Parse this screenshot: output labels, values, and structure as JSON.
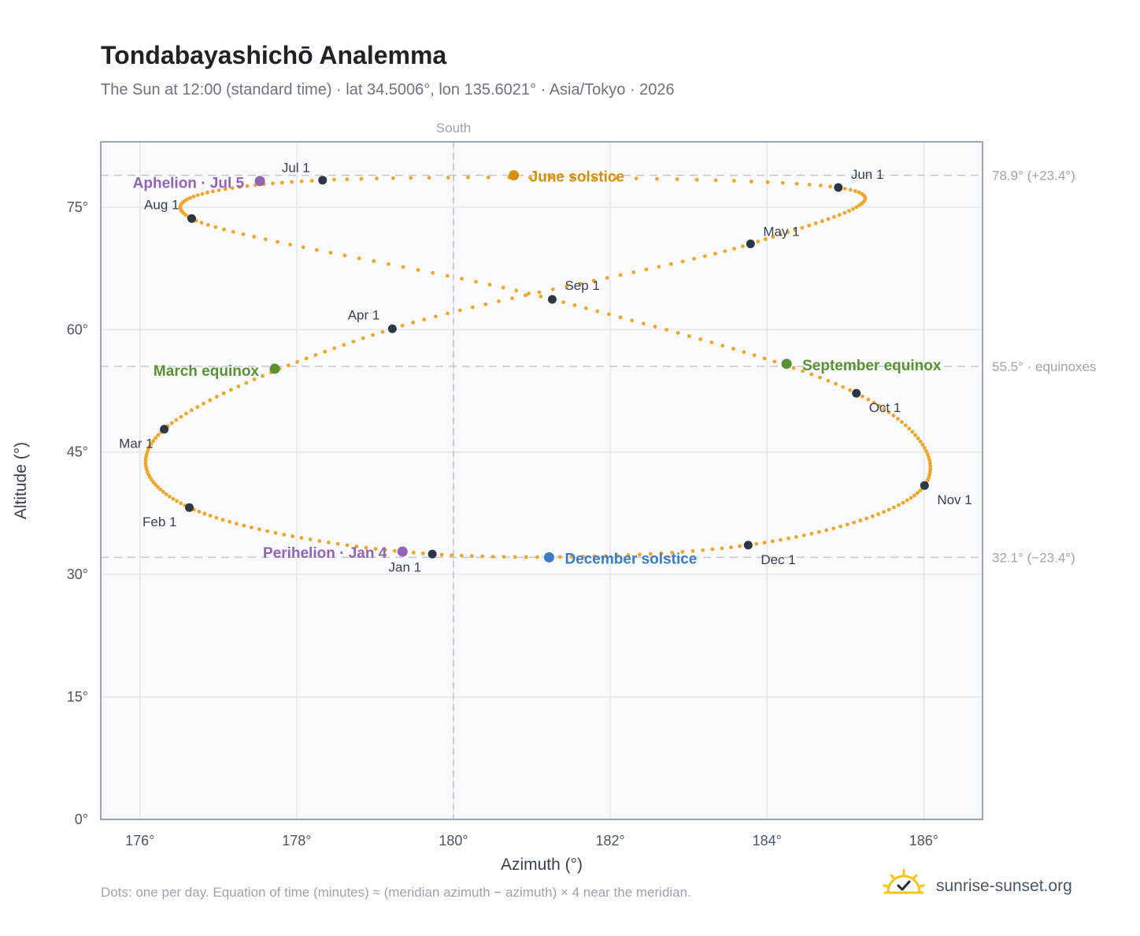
{
  "header": {
    "title": "Tondabayashichō Analemma",
    "subtitle": "The Sun at 12:00 (standard time) · lat 34.5006°, lon 135.6021° · Asia/Tokyo · 2026"
  },
  "footer": {
    "note": "Dots: one per day. Equation of time (minutes) ≈ (meridian azimuth − azimuth) × 4 near the meridian.",
    "brand": "sunrise-sunset.org"
  },
  "colors": {
    "path": "#f2a529",
    "month_marker": "#2d3748",
    "june_solstice": "#d4900c",
    "december_solstice": "#3b7cc4",
    "equinox": "#5a9132",
    "apsis": "#9464b4",
    "grid": "#e5e7eb",
    "plot_bg": "#f8fafc",
    "reference_line": "#c4c9d0",
    "frame": "#9aa5b4"
  },
  "chart_data": {
    "type": "scatter",
    "title": "Tondabayashichō Analemma",
    "xlabel": "Azimuth (°)",
    "ylabel": "Altitude (°)",
    "xlim": [
      175.5,
      186.75
    ],
    "ylim": [
      0,
      83
    ],
    "xticks": [
      176,
      178,
      180,
      182,
      184,
      186
    ],
    "xtick_labels": [
      "176°",
      "178°",
      "180°",
      "182°",
      "184°",
      "186°"
    ],
    "yticks": [
      0,
      15,
      30,
      45,
      60,
      75
    ],
    "ytick_labels": [
      "0°",
      "15°",
      "30°",
      "45°",
      "60°",
      "75°"
    ],
    "grid": true,
    "meridian": {
      "azimuth": 180,
      "label": "South"
    },
    "reference_lines": [
      {
        "altitude": 78.9,
        "label": "78.9° (+23.4°)"
      },
      {
        "altitude": 55.5,
        "label": "55.5° · equinoxes"
      },
      {
        "altitude": 32.1,
        "label": "32.1° (−23.4°)"
      }
    ],
    "month_markers": [
      {
        "label": "Jan 1",
        "azimuth": 179.73,
        "altitude": 32.5
      },
      {
        "label": "Feb 1",
        "azimuth": 176.63,
        "altitude": 38.2
      },
      {
        "label": "Mar 1",
        "azimuth": 176.31,
        "altitude": 47.8
      },
      {
        "label": "Apr 1",
        "azimuth": 179.22,
        "altitude": 60.1
      },
      {
        "label": "May 1",
        "azimuth": 183.79,
        "altitude": 70.5
      },
      {
        "label": "Jun 1",
        "azimuth": 184.91,
        "altitude": 77.4
      },
      {
        "label": "Jul 1",
        "azimuth": 178.33,
        "altitude": 78.3
      },
      {
        "label": "Aug 1",
        "azimuth": 176.66,
        "altitude": 73.6
      },
      {
        "label": "Sep 1",
        "azimuth": 181.26,
        "altitude": 63.7
      },
      {
        "label": "Oct 1",
        "azimuth": 185.14,
        "altitude": 52.2
      },
      {
        "label": "Nov 1",
        "azimuth": 186.01,
        "altitude": 40.9
      },
      {
        "label": "Dec 1",
        "azimuth": 183.76,
        "altitude": 33.6
      }
    ],
    "events": [
      {
        "label": "June solstice",
        "azimuth": 180.77,
        "altitude": 78.9,
        "color_key": "june_solstice"
      },
      {
        "label": "December solstice",
        "azimuth": 181.22,
        "altitude": 32.1,
        "color_key": "december_solstice"
      },
      {
        "label": "March equinox",
        "azimuth": 177.72,
        "altitude": 55.2,
        "color_key": "equinox"
      },
      {
        "label": "September equinox",
        "azimuth": 184.25,
        "altitude": 55.8,
        "color_key": "equinox"
      },
      {
        "label": "Aphelion · Jul 5",
        "azimuth": 177.53,
        "altitude": 78.2,
        "color_key": "apsis"
      },
      {
        "label": "Perihelion · Jan 4",
        "azimuth": 179.35,
        "altitude": 32.8,
        "color_key": "apsis"
      }
    ]
  }
}
